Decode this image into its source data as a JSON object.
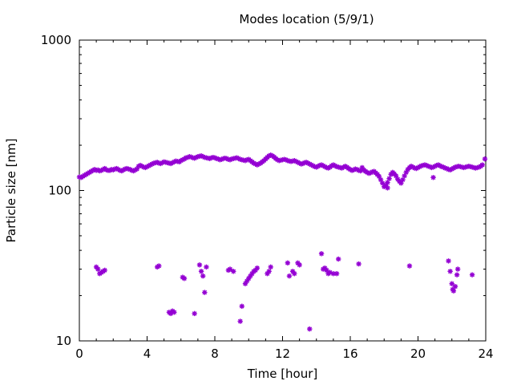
{
  "chart_data": {
    "type": "scatter",
    "title": "Modes location (5/9/1)",
    "xlabel": "Time [hour]",
    "ylabel": "Particle size [nm]",
    "xlim": [
      0,
      24
    ],
    "ylim": [
      10,
      1000
    ],
    "yscale": "log",
    "xticks": [
      "0",
      "4",
      "8",
      "12",
      "16",
      "20",
      "24"
    ],
    "yticks": [
      "10",
      "100",
      "1000"
    ],
    "grid": false,
    "legend": "none",
    "marker": "asterisk",
    "color": "#9400d3",
    "series": [
      {
        "points": [
          [
            0.0,
            123
          ],
          [
            0.1,
            122
          ],
          [
            0.2,
            124
          ],
          [
            0.3,
            126
          ],
          [
            0.4,
            128
          ],
          [
            0.5,
            130
          ],
          [
            0.6,
            132
          ],
          [
            0.7,
            134
          ],
          [
            0.8,
            136
          ],
          [
            0.9,
            138
          ],
          [
            1.0,
            136
          ],
          [
            1.1,
            137
          ],
          [
            1.2,
            135
          ],
          [
            1.3,
            136
          ],
          [
            1.4,
            138
          ],
          [
            1.5,
            140
          ],
          [
            1.6,
            137
          ],
          [
            1.7,
            136
          ],
          [
            1.8,
            136
          ],
          [
            1.9,
            138
          ],
          [
            2.0,
            137
          ],
          [
            2.1,
            139
          ],
          [
            2.2,
            140
          ],
          [
            2.3,
            138
          ],
          [
            2.4,
            136
          ],
          [
            2.5,
            135
          ],
          [
            2.6,
            137
          ],
          [
            2.7,
            139
          ],
          [
            2.8,
            140
          ],
          [
            2.9,
            139
          ],
          [
            3.0,
            138
          ],
          [
            3.1,
            136
          ],
          [
            3.2,
            135
          ],
          [
            3.3,
            137
          ],
          [
            3.4,
            139
          ],
          [
            3.5,
            145
          ],
          [
            3.6,
            147
          ],
          [
            3.7,
            145
          ],
          [
            3.8,
            143
          ],
          [
            3.9,
            142
          ],
          [
            4.0,
            144
          ],
          [
            4.1,
            146
          ],
          [
            4.2,
            148
          ],
          [
            4.3,
            150
          ],
          [
            4.4,
            152
          ],
          [
            4.5,
            153
          ],
          [
            4.6,
            154
          ],
          [
            4.7,
            152
          ],
          [
            4.8,
            151
          ],
          [
            4.9,
            153
          ],
          [
            5.0,
            155
          ],
          [
            5.1,
            154
          ],
          [
            5.2,
            153
          ],
          [
            5.3,
            152
          ],
          [
            5.4,
            151
          ],
          [
            5.5,
            153
          ],
          [
            5.6,
            155
          ],
          [
            5.7,
            157
          ],
          [
            5.8,
            156
          ],
          [
            5.9,
            155
          ],
          [
            6.0,
            158
          ],
          [
            6.1,
            160
          ],
          [
            6.2,
            162
          ],
          [
            6.3,
            165
          ],
          [
            6.4,
            166
          ],
          [
            6.5,
            168
          ],
          [
            6.6,
            167
          ],
          [
            6.7,
            165
          ],
          [
            6.8,
            164
          ],
          [
            6.9,
            166
          ],
          [
            7.0,
            168
          ],
          [
            7.1,
            169
          ],
          [
            7.2,
            170
          ],
          [
            7.3,
            168
          ],
          [
            7.4,
            166
          ],
          [
            7.5,
            165
          ],
          [
            7.6,
            164
          ],
          [
            7.7,
            163
          ],
          [
            7.8,
            165
          ],
          [
            7.9,
            166
          ],
          [
            8.0,
            165
          ],
          [
            8.1,
            163
          ],
          [
            8.2,
            162
          ],
          [
            8.3,
            160
          ],
          [
            8.4,
            161
          ],
          [
            8.5,
            163
          ],
          [
            8.6,
            164
          ],
          [
            8.7,
            163
          ],
          [
            8.8,
            161
          ],
          [
            8.9,
            160
          ],
          [
            9.0,
            162
          ],
          [
            9.1,
            163
          ],
          [
            9.2,
            164
          ],
          [
            9.3,
            165
          ],
          [
            9.4,
            163
          ],
          [
            9.5,
            161
          ],
          [
            9.6,
            160
          ],
          [
            9.7,
            159
          ],
          [
            9.8,
            158
          ],
          [
            9.9,
            160
          ],
          [
            10.0,
            161
          ],
          [
            10.1,
            158
          ],
          [
            10.2,
            155
          ],
          [
            10.3,
            152
          ],
          [
            10.4,
            150
          ],
          [
            10.5,
            148
          ],
          [
            10.6,
            150
          ],
          [
            10.7,
            152
          ],
          [
            10.8,
            155
          ],
          [
            10.9,
            158
          ],
          [
            11.0,
            162
          ],
          [
            11.1,
            166
          ],
          [
            11.2,
            170
          ],
          [
            11.3,
            172
          ],
          [
            11.4,
            170
          ],
          [
            11.5,
            167
          ],
          [
            11.6,
            163
          ],
          [
            11.7,
            160
          ],
          [
            11.8,
            158
          ],
          [
            11.9,
            159
          ],
          [
            12.0,
            160
          ],
          [
            12.1,
            161
          ],
          [
            12.2,
            160
          ],
          [
            12.3,
            158
          ],
          [
            12.4,
            157
          ],
          [
            12.5,
            156
          ],
          [
            12.6,
            157
          ],
          [
            12.7,
            158
          ],
          [
            12.8,
            156
          ],
          [
            12.9,
            154
          ],
          [
            13.0,
            152
          ],
          [
            13.1,
            150
          ],
          [
            13.2,
            151
          ],
          [
            13.3,
            153
          ],
          [
            13.4,
            154
          ],
          [
            13.5,
            152
          ],
          [
            13.6,
            150
          ],
          [
            13.7,
            148
          ],
          [
            13.8,
            146
          ],
          [
            13.9,
            144
          ],
          [
            14.0,
            143
          ],
          [
            14.1,
            145
          ],
          [
            14.2,
            147
          ],
          [
            14.3,
            148
          ],
          [
            14.4,
            146
          ],
          [
            14.5,
            144
          ],
          [
            14.6,
            142
          ],
          [
            14.7,
            141
          ],
          [
            14.8,
            143
          ],
          [
            14.9,
            146
          ],
          [
            15.0,
            148
          ],
          [
            15.1,
            146
          ],
          [
            15.2,
            144
          ],
          [
            15.3,
            143
          ],
          [
            15.4,
            142
          ],
          [
            15.5,
            141
          ],
          [
            15.6,
            143
          ],
          [
            15.7,
            145
          ],
          [
            15.8,
            143
          ],
          [
            15.9,
            140
          ],
          [
            16.0,
            138
          ],
          [
            16.1,
            136
          ],
          [
            16.2,
            137
          ],
          [
            16.3,
            139
          ],
          [
            16.4,
            138
          ],
          [
            16.5,
            136
          ],
          [
            16.6,
            135
          ],
          [
            16.7,
            142
          ],
          [
            16.8,
            137
          ],
          [
            16.9,
            134
          ],
          [
            17.0,
            132
          ],
          [
            17.1,
            130
          ],
          [
            17.2,
            131
          ],
          [
            17.3,
            133
          ],
          [
            17.4,
            134
          ],
          [
            17.5,
            131
          ],
          [
            17.6,
            128
          ],
          [
            17.7,
            124
          ],
          [
            17.8,
            118
          ],
          [
            17.9,
            112
          ],
          [
            18.0,
            106
          ],
          [
            18.1,
            108
          ],
          [
            18.2,
            113
          ],
          [
            18.3,
            120
          ],
          [
            18.4,
            128
          ],
          [
            18.5,
            132
          ],
          [
            18.6,
            129
          ],
          [
            18.7,
            125
          ],
          [
            18.8,
            119
          ],
          [
            18.9,
            115
          ],
          [
            19.0,
            112
          ],
          [
            19.1,
            118
          ],
          [
            19.2,
            125
          ],
          [
            19.3,
            132
          ],
          [
            19.4,
            138
          ],
          [
            19.5,
            142
          ],
          [
            19.6,
            145
          ],
          [
            19.7,
            143
          ],
          [
            19.8,
            141
          ],
          [
            19.9,
            140
          ],
          [
            20.0,
            142
          ],
          [
            20.1,
            144
          ],
          [
            20.2,
            146
          ],
          [
            20.3,
            147
          ],
          [
            20.4,
            148
          ],
          [
            20.5,
            147
          ],
          [
            20.6,
            145
          ],
          [
            20.7,
            144
          ],
          [
            20.8,
            142
          ],
          [
            20.9,
            143
          ],
          [
            21.0,
            145
          ],
          [
            21.1,
            147
          ],
          [
            21.2,
            148
          ],
          [
            21.3,
            146
          ],
          [
            21.4,
            144
          ],
          [
            21.5,
            143
          ],
          [
            21.6,
            141
          ],
          [
            21.7,
            140
          ],
          [
            21.8,
            138
          ],
          [
            21.9,
            137
          ],
          [
            22.0,
            139
          ],
          [
            22.1,
            141
          ],
          [
            22.2,
            143
          ],
          [
            22.3,
            144
          ],
          [
            22.4,
            145
          ],
          [
            22.5,
            144
          ],
          [
            22.6,
            143
          ],
          [
            22.7,
            142
          ],
          [
            22.8,
            143
          ],
          [
            22.9,
            144
          ],
          [
            23.0,
            145
          ],
          [
            23.1,
            144
          ],
          [
            23.2,
            143
          ],
          [
            23.3,
            142
          ],
          [
            23.4,
            141
          ],
          [
            23.5,
            142
          ],
          [
            23.6,
            143
          ],
          [
            23.7,
            145
          ],
          [
            23.8,
            148
          ],
          [
            23.95,
            162
          ],
          [
            20.9,
            122
          ],
          [
            18.2,
            104
          ],
          [
            1.0,
            31
          ],
          [
            1.1,
            30
          ],
          [
            1.2,
            28
          ],
          [
            1.3,
            28.5
          ],
          [
            1.4,
            29
          ],
          [
            1.5,
            29.5
          ],
          [
            4.6,
            31
          ],
          [
            4.7,
            31.5
          ],
          [
            5.3,
            15.5
          ],
          [
            5.4,
            15.2
          ],
          [
            5.5,
            15.8
          ],
          [
            5.6,
            15.5
          ],
          [
            6.1,
            26.5
          ],
          [
            6.2,
            26
          ],
          [
            6.8,
            15.2
          ],
          [
            7.1,
            32
          ],
          [
            7.2,
            29
          ],
          [
            7.3,
            27
          ],
          [
            7.4,
            21
          ],
          [
            7.5,
            31
          ],
          [
            8.8,
            29.5
          ],
          [
            8.9,
            30
          ],
          [
            9.1,
            29
          ],
          [
            9.5,
            13.5
          ],
          [
            9.6,
            17
          ],
          [
            9.8,
            24
          ],
          [
            9.9,
            25
          ],
          [
            10.0,
            26
          ],
          [
            10.1,
            27
          ],
          [
            10.2,
            28
          ],
          [
            10.3,
            29
          ],
          [
            10.4,
            29.5
          ],
          [
            10.5,
            30.5
          ],
          [
            11.1,
            28
          ],
          [
            11.2,
            29
          ],
          [
            11.3,
            31
          ],
          [
            12.3,
            33
          ],
          [
            12.4,
            27
          ],
          [
            12.6,
            29
          ],
          [
            12.7,
            28
          ],
          [
            12.9,
            33
          ],
          [
            13.0,
            32
          ],
          [
            13.6,
            12
          ],
          [
            14.3,
            38
          ],
          [
            14.4,
            30
          ],
          [
            14.5,
            30.5
          ],
          [
            14.6,
            29.5
          ],
          [
            14.7,
            28
          ],
          [
            14.8,
            28.5
          ],
          [
            15.0,
            28
          ],
          [
            15.2,
            28
          ],
          [
            15.3,
            35
          ],
          [
            16.5,
            32.5
          ],
          [
            19.5,
            31.5
          ],
          [
            21.8,
            34
          ],
          [
            21.9,
            29
          ],
          [
            22.0,
            24
          ],
          [
            22.05,
            22
          ],
          [
            22.1,
            21.5
          ],
          [
            22.2,
            23
          ],
          [
            22.3,
            27.5
          ],
          [
            22.35,
            30
          ],
          [
            23.2,
            27.5
          ]
        ]
      }
    ]
  }
}
